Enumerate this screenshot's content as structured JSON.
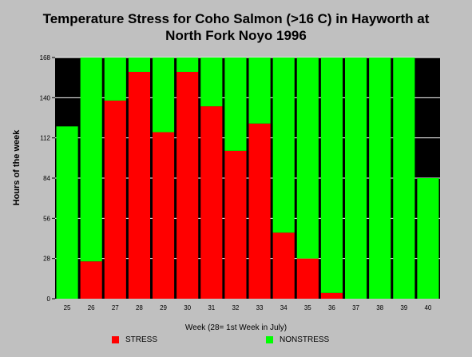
{
  "chart_data": {
    "type": "bar",
    "stacked": true,
    "title_line1": "Temperature Stress for Coho Salmon (>16 C) in Hayworth at",
    "title_line2": "North Fork Noyo 1996",
    "xlabel": "Week (28= 1st Week in July)",
    "ylabel": "Hours of the week",
    "ylim": [
      0,
      168
    ],
    "yticks": [
      0,
      28,
      56,
      84,
      112,
      140,
      168
    ],
    "grid": true,
    "categories": [
      "25",
      "26",
      "27",
      "28",
      "29",
      "30",
      "31",
      "32",
      "33",
      "34",
      "35",
      "36",
      "37",
      "38",
      "39",
      "40"
    ],
    "series": [
      {
        "name": "STRESS",
        "color": "#ff0000",
        "values": [
          0,
          26,
          138,
          158,
          116,
          158,
          134,
          103,
          122,
          46,
          28,
          4,
          0,
          0,
          0,
          0
        ]
      },
      {
        "name": "NONSTRESS",
        "color": "#00ff00",
        "values": [
          120,
          142,
          30,
          10,
          52,
          10,
          34,
          65,
          46,
          122,
          140,
          164,
          168,
          168,
          168,
          84
        ]
      }
    ],
    "legend_position": "bottom"
  }
}
